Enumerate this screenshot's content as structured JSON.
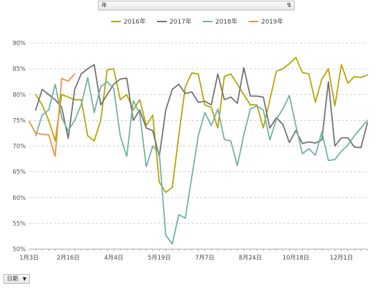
{
  "field_button": {
    "label": "年",
    "filter_icon": "filter-icon"
  },
  "axis_button": {
    "label": "日期",
    "dropdown_icon": "dropdown-triangle-icon"
  },
  "chart_data": {
    "type": "line",
    "title": "",
    "xlabel": "",
    "ylabel": "",
    "legend_position": "top",
    "grid": true,
    "ylim": [
      0.5,
      0.9
    ],
    "yticks": [
      "50%",
      "55%",
      "60%",
      "65%",
      "70%",
      "75%",
      "80%",
      "85%",
      "90%"
    ],
    "x_points": 53,
    "xticks": [
      {
        "index": 0,
        "label": "1月3日"
      },
      {
        "index": 6,
        "label": "2月16日"
      },
      {
        "index": 13,
        "label": "4月4日"
      },
      {
        "index": 20,
        "label": "5月19日"
      },
      {
        "index": 27,
        "label": "7月7日"
      },
      {
        "index": 34,
        "label": "8月24日"
      },
      {
        "index": 41,
        "label": "10月18日"
      },
      {
        "index": 48,
        "label": "12月1日"
      }
    ],
    "series": [
      {
        "name": "2016年",
        "color": "#b5a400",
        "values": [
          null,
          0.8,
          0.78,
          0.75,
          0.71,
          0.8,
          0.795,
          0.79,
          0.79,
          0.72,
          0.71,
          0.75,
          0.848,
          0.85,
          0.79,
          0.8,
          0.77,
          0.79,
          0.74,
          0.76,
          0.63,
          0.61,
          0.62,
          0.72,
          0.815,
          0.842,
          0.84,
          0.78,
          0.775,
          0.735,
          0.835,
          0.84,
          0.82,
          0.8,
          0.78,
          0.78,
          0.735,
          0.79,
          0.845,
          0.85,
          0.86,
          0.872,
          0.843,
          0.84,
          0.785,
          0.83,
          0.85,
          0.778,
          0.858,
          0.822,
          0.835,
          0.833,
          0.838
        ]
      },
      {
        "name": "2017年",
        "color": "#707070",
        "values": [
          null,
          0.77,
          0.81,
          0.8,
          0.79,
          0.775,
          0.715,
          0.81,
          0.84,
          0.85,
          0.858,
          0.78,
          0.8,
          0.82,
          0.83,
          0.832,
          0.75,
          0.77,
          0.735,
          0.73,
          0.68,
          0.77,
          0.81,
          0.82,
          0.802,
          0.805,
          0.785,
          0.787,
          0.78,
          0.84,
          0.79,
          0.795,
          0.783,
          0.852,
          0.797,
          0.797,
          0.795,
          0.735,
          0.755,
          0.742,
          0.707,
          0.73,
          0.705,
          0.708,
          0.706,
          0.712,
          0.825,
          0.7,
          0.716,
          0.716,
          0.698,
          0.697,
          0.745
        ]
      },
      {
        "name": "2018年",
        "color": "#6fb1a3",
        "values": [
          null,
          0.72,
          0.76,
          0.77,
          0.82,
          0.755,
          0.73,
          0.75,
          0.78,
          0.833,
          0.765,
          0.815,
          0.825,
          0.812,
          0.72,
          0.68,
          0.788,
          0.763,
          0.66,
          0.7,
          0.687,
          0.527,
          0.51,
          0.567,
          0.56,
          0.64,
          0.72,
          0.765,
          0.74,
          0.772,
          0.713,
          0.71,
          0.662,
          0.722,
          0.772,
          0.778,
          0.77,
          0.712,
          0.752,
          0.772,
          0.798,
          0.74,
          0.685,
          0.695,
          0.682,
          0.728,
          0.672,
          0.674,
          0.69,
          0.702,
          0.72,
          0.735,
          0.75
        ]
      },
      {
        "name": "2019年",
        "color": "#f0913a",
        "values": [
          0.748,
          0.725,
          0.723,
          0.722,
          0.68,
          0.831,
          0.826,
          0.84
        ]
      }
    ]
  }
}
